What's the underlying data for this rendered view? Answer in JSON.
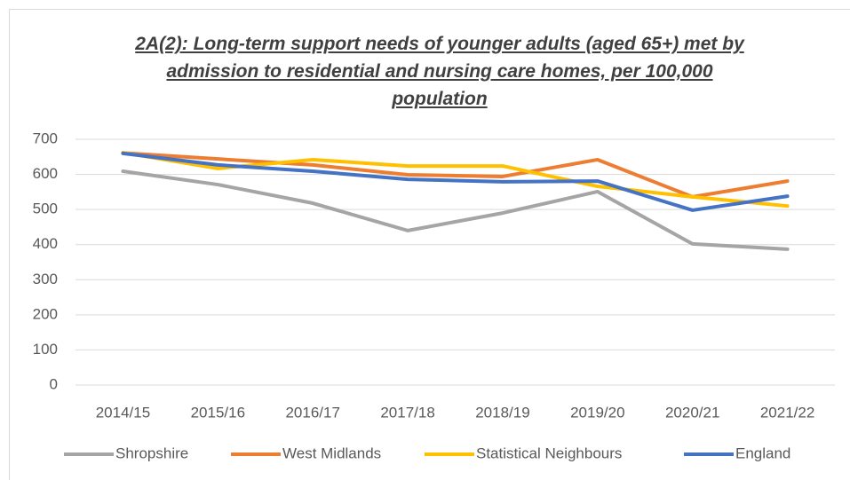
{
  "chart_data": {
    "type": "line",
    "title": "2A(2): Long-term support needs of younger adults (aged 65+) met by admission to residential and nursing care homes, per 100,000 population",
    "categories": [
      "2014/15",
      "2015/16",
      "2016/17",
      "2017/18",
      "2018/19",
      "2019/20",
      "2020/21",
      "2021/22"
    ],
    "series": [
      {
        "name": "Shropshire",
        "color": "#a5a5a5",
        "values": [
          609,
          571,
          518,
          440,
          490,
          551,
          402,
          387
        ]
      },
      {
        "name": "West Midlands",
        "color": "#ed7d31",
        "values": [
          661,
          644,
          627,
          599,
          594,
          642,
          536,
          581
        ]
      },
      {
        "name": "Statistical Neighbours",
        "color": "#ffc000",
        "values": [
          662,
          617,
          642,
          624,
          624,
          566,
          536,
          510
        ]
      },
      {
        "name": "England",
        "color": "#4472c4",
        "values": [
          660,
          627,
          609,
          586,
          579,
          581,
          498,
          538
        ]
      }
    ],
    "ylim": [
      0,
      700
    ],
    "yticks": [
      0,
      100,
      200,
      300,
      400,
      500,
      600,
      700
    ],
    "grid": true,
    "legend": "bottom"
  }
}
